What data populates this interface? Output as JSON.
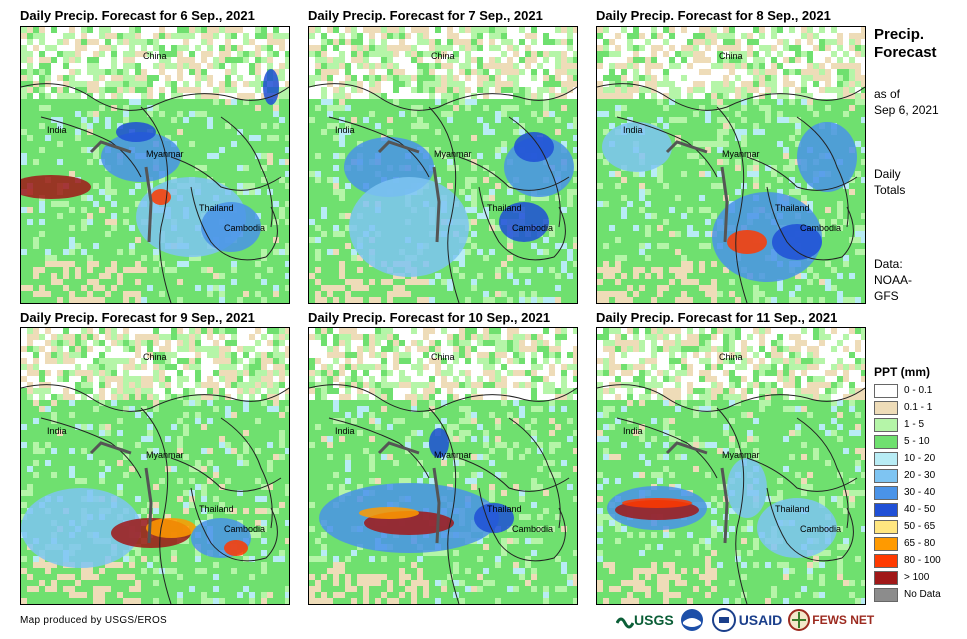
{
  "panels": [
    {
      "title": "Daily Precip. Forecast for 6 Sep., 2021"
    },
    {
      "title": "Daily Precip. Forecast for 7 Sep., 2021"
    },
    {
      "title": "Daily Precip. Forecast for 8 Sep., 2021"
    },
    {
      "title": "Daily Precip. Forecast for 9 Sep., 2021"
    },
    {
      "title": "Daily Precip. Forecast for 10 Sep., 2021"
    },
    {
      "title": "Daily Precip. Forecast for 11 Sep., 2021"
    }
  ],
  "map_labels": {
    "china": "China",
    "india": "India",
    "myanmar": "Myanmar",
    "thailand": "Thailand",
    "cambodia": "Cambodia"
  },
  "side": {
    "title_line1": "Precip.",
    "title_line2": "Forecast",
    "asof_line1": "as of",
    "asof_line2": "Sep 6, 2021",
    "daily_line1": "Daily",
    "daily_line2": "Totals",
    "data_line1": "Data:",
    "data_line2": "NOAA-",
    "data_line3": "GFS"
  },
  "legend": {
    "title": "PPT (mm)",
    "items": [
      {
        "label": "0 - 0.1",
        "color": "#ffffff"
      },
      {
        "label": "0.1 - 1",
        "color": "#eedcb8"
      },
      {
        "label": "1 - 5",
        "color": "#b5f5a8"
      },
      {
        "label": "5 - 10",
        "color": "#6fe06f"
      },
      {
        "label": "10 - 20",
        "color": "#b8ecf5"
      },
      {
        "label": "20 - 30",
        "color": "#7ec4f2"
      },
      {
        "label": "30 - 40",
        "color": "#4a93e8"
      },
      {
        "label": "40 - 50",
        "color": "#1f4fd6"
      },
      {
        "label": "50 - 65",
        "color": "#ffe680"
      },
      {
        "label": "65 - 80",
        "color": "#ff9a00"
      },
      {
        "label": "80 - 100",
        "color": "#ff3a00"
      },
      {
        "label": "> 100",
        "color": "#a01818"
      },
      {
        "label": "No Data",
        "color": "#8c8c8c"
      }
    ]
  },
  "footer": {
    "credit": "Map produced by USGS/EROS",
    "usgs": "USGS",
    "usaid": "USAID",
    "fewsnet": "FEWS NET"
  }
}
